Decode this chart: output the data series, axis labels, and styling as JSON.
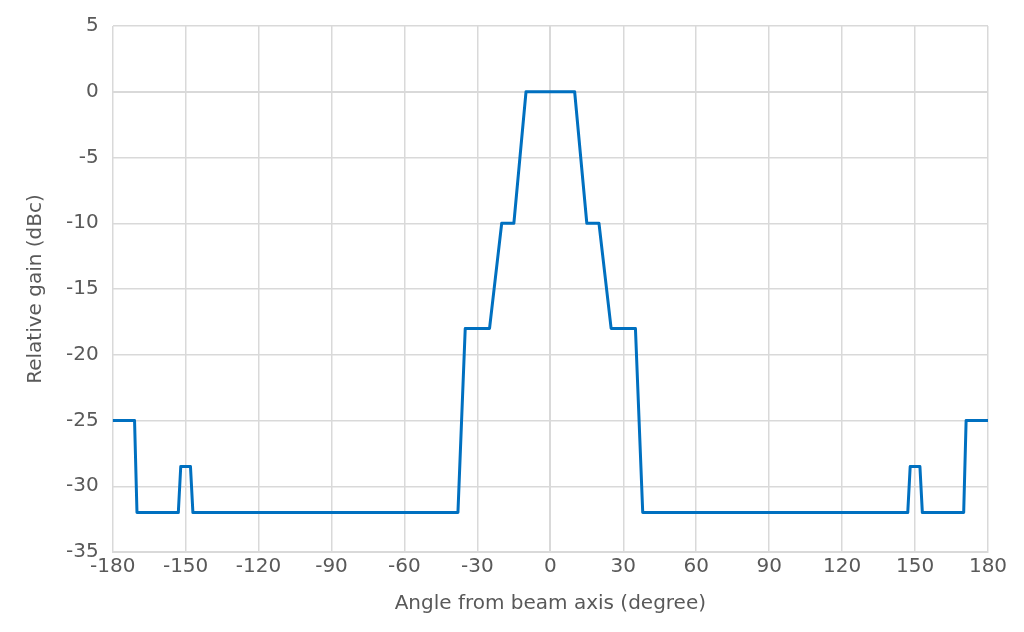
{
  "chart_data": {
    "type": "line",
    "xlabel": "Angle from beam axis (degree)",
    "ylabel": "Relative gain (dBc)",
    "series": [
      {
        "color": "#0070c0",
        "x": [
          -180,
          -171,
          -170,
          -153,
          -152,
          -148,
          -147,
          -38,
          -35,
          -25,
          -20,
          -15,
          -10,
          10,
          15,
          20,
          25,
          35,
          38,
          147,
          148,
          152,
          153,
          170,
          171,
          180
        ],
        "values": [
          -25,
          -25,
          -32,
          -32,
          -28.5,
          -28.5,
          -32,
          -32,
          -18,
          -18,
          -10,
          -10,
          0,
          0,
          -10,
          -10,
          -18,
          -18,
          -32,
          -32,
          -28.5,
          -28.5,
          -32,
          -32,
          -25,
          -25
        ]
      }
    ],
    "xlim": [
      -180,
      180
    ],
    "xticks": [
      -180,
      -150,
      -120,
      -90,
      -60,
      -30,
      0,
      30,
      60,
      90,
      120,
      150,
      180
    ],
    "ylim": [
      -35,
      5
    ],
    "yticks": [
      -35,
      -30,
      -25,
      -20,
      -15,
      -10,
      -5,
      0,
      5
    ],
    "grid": true,
    "legend": false,
    "marker": "none",
    "line_style": "solid"
  }
}
